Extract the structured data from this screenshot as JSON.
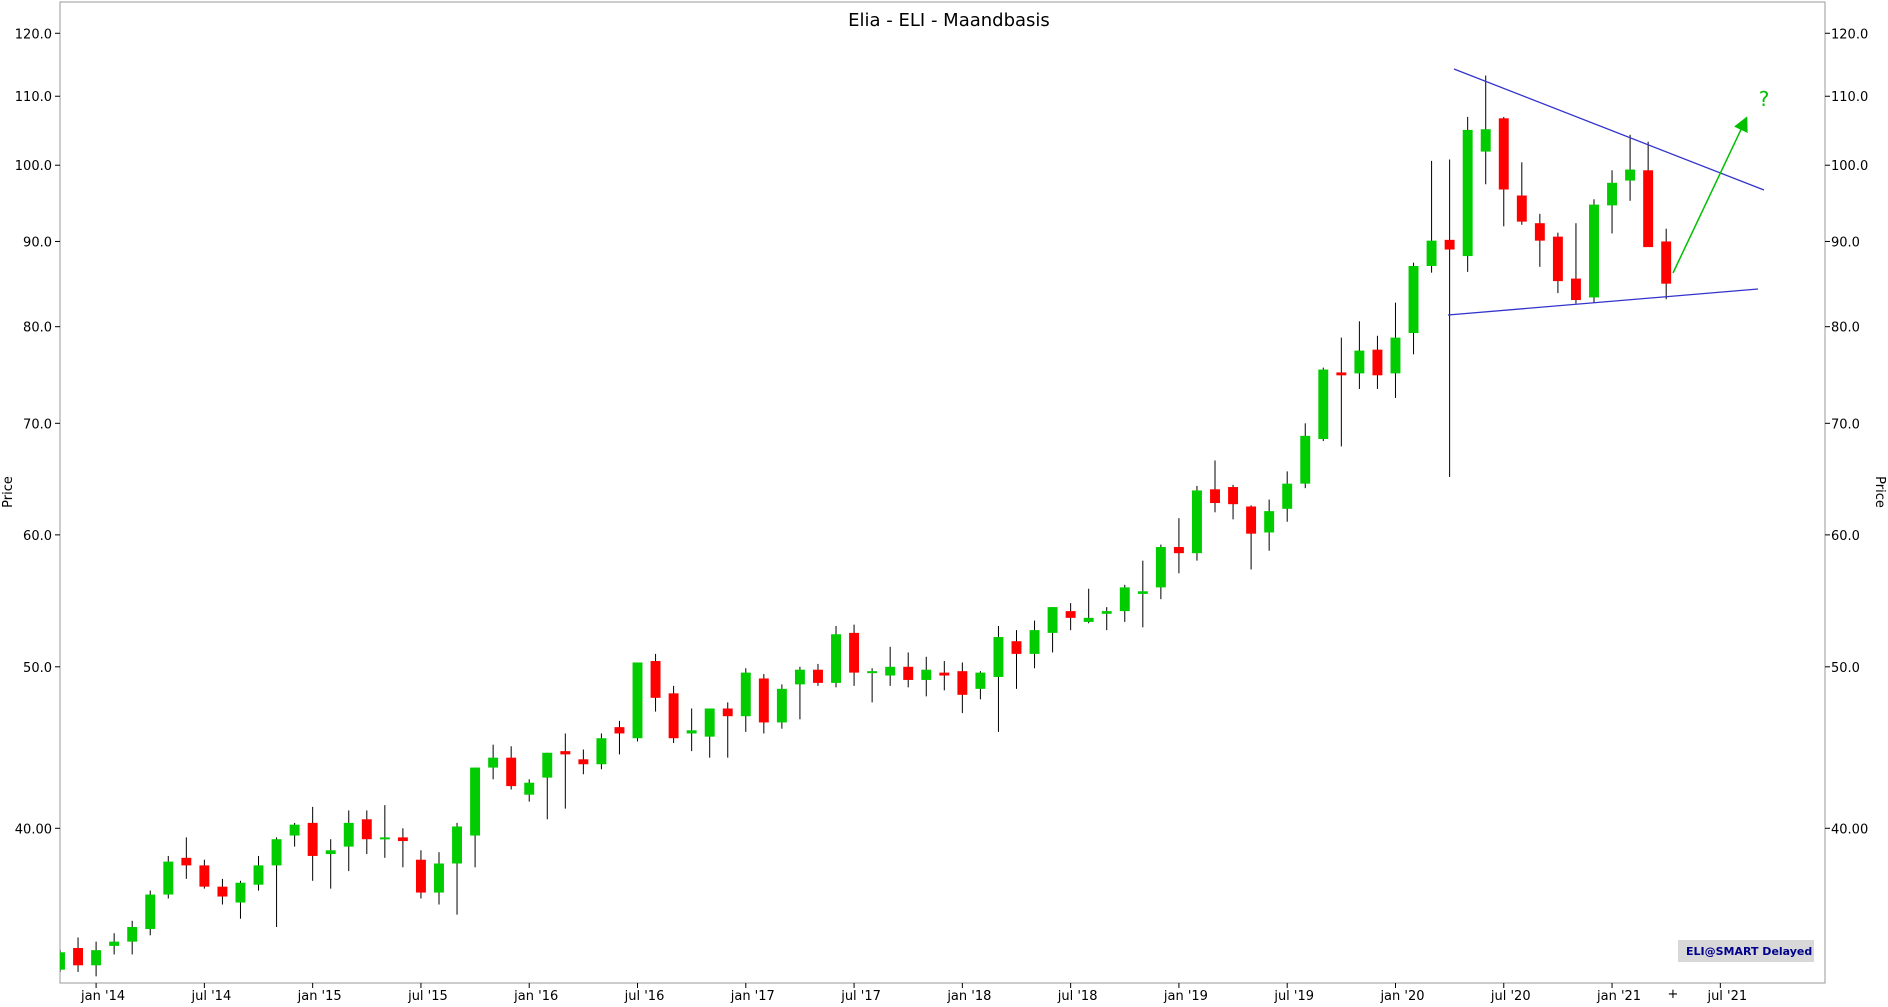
{
  "chart_data": {
    "type": "candlestick",
    "title": "Elia - ELI - Maandbasis",
    "ylabel": "Price",
    "yscale": "log",
    "grid": false,
    "up_color": "#00cc00",
    "down_color": "#ff0000",
    "annotation": "?",
    "badge": "ELI@SMART Delayed",
    "ylim": [
      32.3,
      125.3
    ],
    "yticks": [
      {
        "value": 40,
        "label": "40.00"
      },
      {
        "value": 50,
        "label": "50.0"
      },
      {
        "value": 60,
        "label": "60.0"
      },
      {
        "value": 70,
        "label": "70.0"
      },
      {
        "value": 80,
        "label": "80.0"
      },
      {
        "value": 90,
        "label": "90.0"
      },
      {
        "value": 100,
        "label": "100.0"
      },
      {
        "value": 110,
        "label": "110.0"
      },
      {
        "value": 120,
        "label": "120.0"
      }
    ],
    "categories": [
      null,
      null,
      "jan '14",
      null,
      null,
      null,
      null,
      null,
      "jul '14",
      null,
      null,
      null,
      null,
      null,
      "jan '15",
      null,
      null,
      null,
      null,
      null,
      "jul '15",
      null,
      null,
      null,
      null,
      null,
      "jan '16",
      null,
      null,
      null,
      null,
      null,
      "jul '16",
      null,
      null,
      null,
      null,
      null,
      "jan '17",
      null,
      null,
      null,
      null,
      null,
      "jul '17",
      null,
      null,
      null,
      null,
      null,
      "jan '18",
      null,
      null,
      null,
      null,
      null,
      "jul '18",
      null,
      null,
      null,
      null,
      null,
      "jan '19",
      null,
      null,
      null,
      null,
      null,
      "jul '19",
      null,
      null,
      null,
      null,
      null,
      "jan '20",
      null,
      null,
      null,
      null,
      null,
      "jul '20",
      null,
      null,
      null,
      null,
      null,
      "jan '21",
      null,
      null,
      null,
      null,
      null,
      "jul '21",
      null,
      null,
      null,
      null,
      null
    ],
    "open": [
      32.9,
      33.9,
      33.1,
      34.0,
      34.2,
      34.8,
      36.5,
      38.4,
      38.0,
      36.9,
      36.1,
      37.0,
      38.0,
      39.6,
      40.3,
      38.6,
      39.0,
      40.5,
      39.4,
      39.5,
      38.3,
      36.6,
      38.1,
      39.6,
      43.5,
      44.1,
      41.9,
      42.9,
      44.5,
      44.0,
      43.7,
      46.0,
      45.3,
      50.4,
      48.2,
      45.6,
      45.4,
      47.2,
      46.7,
      49.2,
      46.3,
      48.8,
      49.8,
      48.9,
      52.4,
      49.6,
      49.4,
      50.0,
      49.1,
      49.6,
      49.7,
      48.5,
      49.3,
      51.8,
      50.9,
      52.4,
      54.0,
      53.2,
      53.8,
      54.0,
      55.3,
      55.8,
      59.0,
      58.5,
      63.9,
      64.1,
      62.4,
      60.2,
      62.2,
      64.4,
      68.5,
      75.1,
      75.0,
      77.5,
      75.0,
      79.3,
      87.0,
      90.2,
      88.2,
      101.9,
      106.7,
      95.9,
      92.3,
      90.6,
      85.5,
      83.3,
      94.6,
      97.9,
      99.3,
      90.0,
      null,
      null,
      null,
      null,
      null,
      null,
      null,
      null
    ],
    "high": [
      33.8,
      34.4,
      34.2,
      34.6,
      35.2,
      36.7,
      38.5,
      39.5,
      38.3,
      37.3,
      37.2,
      38.5,
      39.5,
      40.3,
      41.2,
      39.4,
      41.0,
      41.0,
      41.3,
      40.0,
      38.8,
      38.7,
      40.3,
      43.5,
      44.9,
      44.8,
      42.8,
      44.4,
      45.6,
      44.6,
      45.6,
      46.4,
      50.3,
      50.9,
      48.7,
      47.2,
      47.2,
      47.6,
      49.9,
      49.5,
      48.8,
      50.0,
      50.2,
      52.9,
      53.0,
      49.9,
      51.4,
      51.0,
      50.7,
      50.4,
      50.3,
      49.7,
      52.9,
      52.6,
      53.3,
      54.3,
      54.6,
      55.7,
      54.3,
      56.0,
      57.9,
      59.2,
      61.4,
      64.2,
      66.5,
      64.3,
      62.5,
      63.0,
      65.5,
      70.0,
      75.6,
      78.8,
      80.6,
      79.0,
      82.7,
      87.4,
      100.6,
      100.8,
      106.9,
      113.2,
      106.9,
      100.4,
      93.5,
      91.1,
      92.3,
      95.4,
      99.3,
      104.3,
      103.3,
      91.6,
      null,
      null,
      null,
      null,
      null,
      null,
      null,
      null
    ],
    "low": [
      32.8,
      32.8,
      32.6,
      33.6,
      33.6,
      34.5,
      36.3,
      37.3,
      36.8,
      36.0,
      35.3,
      36.7,
      34.9,
      39.0,
      37.2,
      36.8,
      37.7,
      38.6,
      38.4,
      37.9,
      36.3,
      36.0,
      35.5,
      37.9,
      42.8,
      42.2,
      41.5,
      40.5,
      41.1,
      43.1,
      43.4,
      44.3,
      45.1,
      47.0,
      45.0,
      44.5,
      44.1,
      44.1,
      45.7,
      45.6,
      45.9,
      46.5,
      48.7,
      48.6,
      48.7,
      47.6,
      48.7,
      48.6,
      48.0,
      48.4,
      46.9,
      47.8,
      45.7,
      48.5,
      49.9,
      51.0,
      52.6,
      53.1,
      52.6,
      53.2,
      52.8,
      54.9,
      56.9,
      57.9,
      61.9,
      61.3,
      57.2,
      58.7,
      61.1,
      64.0,
      68.3,
      67.8,
      73.4,
      73.4,
      72.5,
      77.0,
      86.2,
      65.0,
      86.3,
      97.4,
      91.9,
      92.1,
      86.9,
      83.8,
      82.6,
      82.7,
      91.0,
      95.2,
      89.5,
      83.1,
      null,
      null,
      null,
      null,
      null,
      null,
      null,
      null
    ],
    "close": [
      33.7,
      33.1,
      33.8,
      34.2,
      34.9,
      36.5,
      38.2,
      38.0,
      36.9,
      36.4,
      37.1,
      38.0,
      39.4,
      40.2,
      38.5,
      38.8,
      40.3,
      39.4,
      39.5,
      39.3,
      36.6,
      38.1,
      40.1,
      43.5,
      44.1,
      42.4,
      42.6,
      44.4,
      44.3,
      43.7,
      45.3,
      45.6,
      50.3,
      47.9,
      45.3,
      45.8,
      47.2,
      46.7,
      49.6,
      46.3,
      48.5,
      49.8,
      48.9,
      52.3,
      49.6,
      49.7,
      50.0,
      49.1,
      49.8,
      49.4,
      48.1,
      49.6,
      52.1,
      50.9,
      52.6,
      54.3,
      53.5,
      53.5,
      54.0,
      55.8,
      55.5,
      59.0,
      58.5,
      63.8,
      62.7,
      62.6,
      60.1,
      62.0,
      64.4,
      68.8,
      75.4,
      74.8,
      77.4,
      74.8,
      78.8,
      87.0,
      90.1,
      89.0,
      105.0,
      105.1,
      96.7,
      92.5,
      90.1,
      85.2,
      83.0,
      94.7,
      97.6,
      99.4,
      89.3,
      84.9,
      null,
      null,
      null,
      null,
      null,
      null,
      null,
      null
    ]
  }
}
